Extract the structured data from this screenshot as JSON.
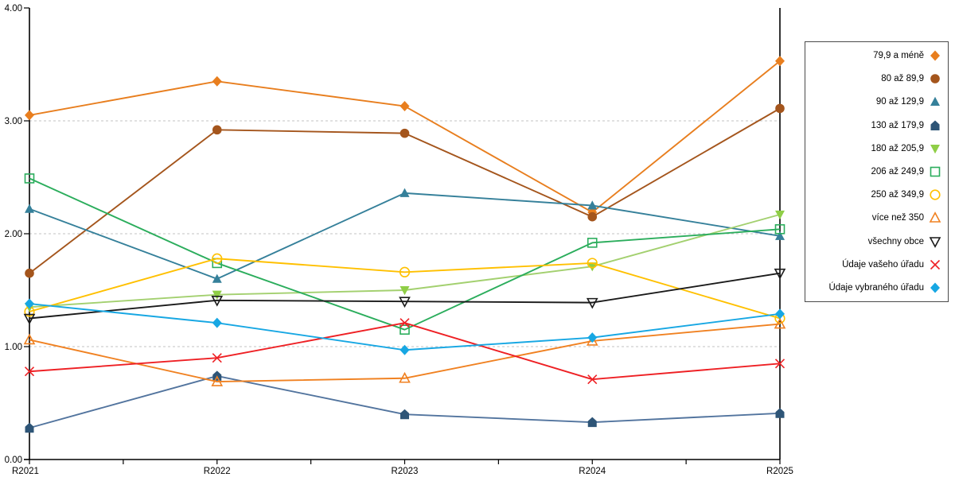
{
  "chart_data": {
    "type": "line",
    "title": "",
    "xlabel": "",
    "ylabel": "",
    "categories": [
      "R2021",
      "R2022",
      "R2023",
      "R2024",
      "R2025"
    ],
    "ylim": [
      0,
      4
    ],
    "ytick_labels": [
      "0.00",
      "1.00",
      "2.00",
      "3.00",
      "4.00"
    ],
    "grid": "horizontal dashed gridlines at 1.00, 2.00, 3.00",
    "legend_position": "right",
    "series": [
      {
        "name": "79,9 a méně",
        "marker": "diamond",
        "marker_style": "solid",
        "color": "#E87E1E",
        "values": [
          3.05,
          3.35,
          3.13,
          2.19,
          3.53
        ]
      },
      {
        "name": "80 až 89,9",
        "marker": "circle",
        "marker_style": "solid",
        "color": "#A4551C",
        "values": [
          1.65,
          2.92,
          2.89,
          2.15,
          3.11
        ]
      },
      {
        "name": "90 až 129,9",
        "marker": "triangle-up",
        "marker_style": "solid",
        "color": "#35809A",
        "values": [
          2.22,
          1.6,
          2.36,
          2.25,
          1.98
        ]
      },
      {
        "name": "130 až 179,9",
        "marker": "pentagon",
        "marker_style": "solid",
        "color": "#2E5577",
        "line_color": "#52749E",
        "values": [
          0.28,
          0.74,
          0.4,
          0.33,
          0.41
        ]
      },
      {
        "name": "180 až 205,9",
        "marker": "triangle-down",
        "marker_style": "solid",
        "color": "#8FCE46",
        "line_color": "#A3D06F",
        "values": [
          1.35,
          1.46,
          1.5,
          1.71,
          2.17
        ]
      },
      {
        "name": "206 až 249,9",
        "marker": "square",
        "marker_style": "open",
        "color": "#2BAD5C",
        "values": [
          2.49,
          1.74,
          1.15,
          1.92,
          2.04
        ]
      },
      {
        "name": "250 až 349,9",
        "marker": "circle",
        "marker_style": "open",
        "color": "#FFC000",
        "values": [
          1.31,
          1.78,
          1.66,
          1.74,
          1.25
        ]
      },
      {
        "name": "více než 350",
        "marker": "triangle-up",
        "marker_style": "open",
        "color": "#F08121",
        "values": [
          1.06,
          0.69,
          0.72,
          1.05,
          1.2
        ]
      },
      {
        "name": "všechny obce",
        "marker": "triangle-down",
        "marker_style": "open",
        "color": "#1A1A1A",
        "values": [
          1.25,
          1.41,
          1.4,
          1.39,
          1.65
        ]
      },
      {
        "name": "Údaje vašeho úřadu",
        "marker": "x",
        "marker_style": "open",
        "color": "#EE2024",
        "values": [
          0.78,
          0.9,
          1.21,
          0.71,
          0.85
        ]
      },
      {
        "name": "Údaje vybraného úřadu",
        "marker": "diamond",
        "marker_style": "solid",
        "color": "#17A7E3",
        "values": [
          1.38,
          1.21,
          0.97,
          1.08,
          1.29
        ]
      }
    ]
  },
  "colors": {
    "background": "#FFFFFF",
    "axis": "#000000",
    "grid": "#C3C3C3",
    "tick_text": "#000000",
    "legend_border": "#4A4A4A"
  }
}
